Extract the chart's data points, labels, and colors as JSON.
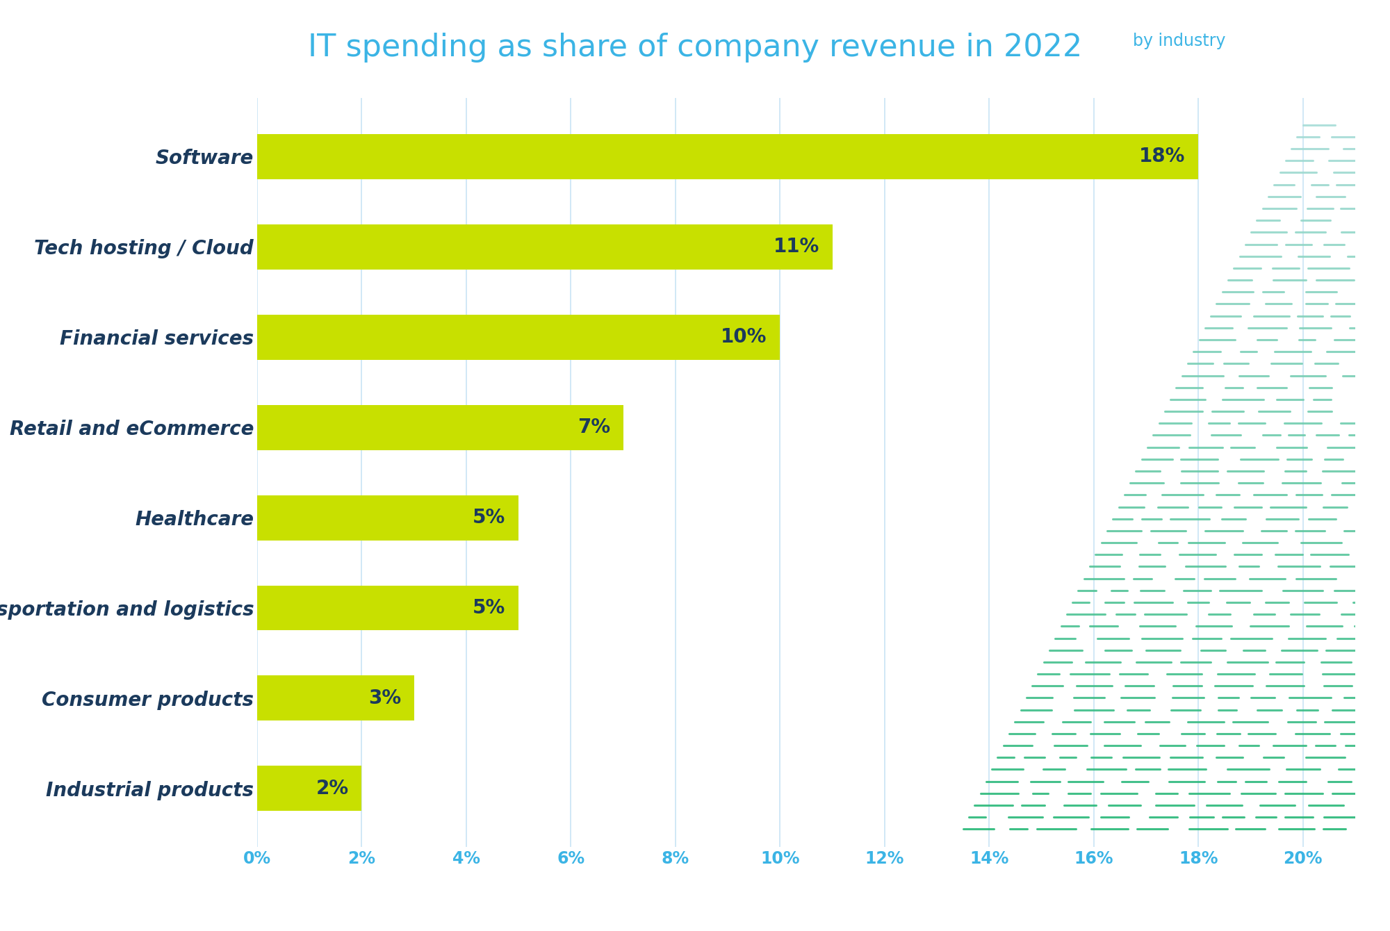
{
  "title_main": "IT spending as share of company revenue in 2022",
  "title_sub": "by industry",
  "title_color": "#3BB4E5",
  "title_fontsize": 32,
  "subtitle_fontsize": 17,
  "categories": [
    "Software",
    "Tech hosting / Cloud",
    "Financial services",
    "Retail and eCommerce",
    "Healthcare",
    "Transportation and logistics",
    "Consumer products",
    "Industrial products"
  ],
  "values": [
    18,
    11,
    10,
    7,
    5,
    5,
    3,
    2
  ],
  "bar_color": "#C8E000",
  "bar_label_color": "#1B3A5C",
  "label_color": "#1B3A5C",
  "label_fontsize": 20,
  "bar_label_fontsize": 20,
  "xlim": [
    0,
    21
  ],
  "xticks": [
    0,
    2,
    4,
    6,
    8,
    10,
    12,
    14,
    16,
    18,
    20
  ],
  "xtick_labels": [
    "0%",
    "2%",
    "4%",
    "6%",
    "8%",
    "10%",
    "12%",
    "14%",
    "16%",
    "18%",
    "20%"
  ],
  "xtick_color": "#3BB4E5",
  "grid_color": "#C8E4F5",
  "background_color": "#FFFFFF",
  "deco_color_light": "#A8DDD8",
  "deco_color_dark": "#28B878"
}
